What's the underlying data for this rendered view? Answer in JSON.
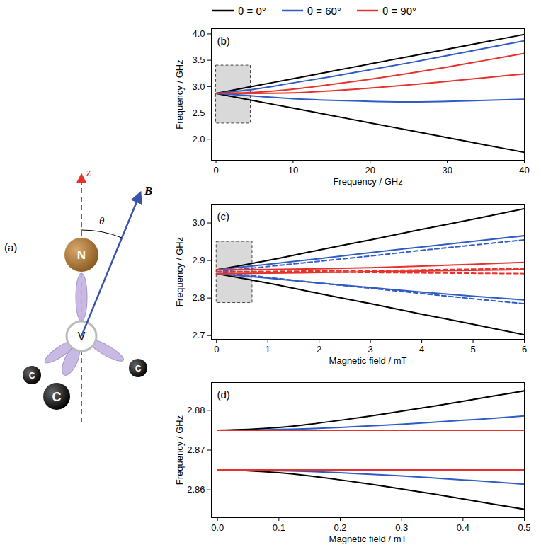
{
  "diagram": {
    "label": "(a)",
    "axis_label": "z",
    "angle_label": "θ",
    "field_label": "B",
    "atoms": {
      "nitrogen": "N",
      "vacancy": "V",
      "carbon": [
        "C",
        "C",
        "C"
      ]
    }
  },
  "chart_data": [
    {
      "type": "line",
      "title": "(b)",
      "x_label": "Frequency / GHz",
      "y_label": "Frequency / GHz",
      "x": [
        0,
        5,
        10,
        15,
        20,
        25,
        30,
        35,
        40
      ],
      "xlim": [
        -0.6,
        40
      ],
      "xticks": [
        0,
        10,
        20,
        30,
        40
      ],
      "ylim": [
        1.6,
        4.1
      ],
      "yticks": [
        {
          "value": 2,
          "label": "2.0"
        },
        2.5,
        {
          "value": 3,
          "label": "3.0"
        },
        3.5,
        {
          "value": 4,
          "label": "4.0"
        }
      ],
      "legend": "top",
      "zoom_box": {
        "x": [
          0,
          4.5
        ],
        "y": [
          2.3,
          3.4
        ]
      },
      "series": [
        {
          "name": "θ = 0°",
          "color": "#000000",
          "values": [
            2.87,
            3.01,
            3.15,
            3.29,
            3.43,
            3.57,
            3.71,
            3.85,
            3.99
          ]
        },
        {
          "name": "θ = 0°",
          "color": "#000000",
          "values": [
            2.87,
            2.73,
            2.59,
            2.45,
            2.31,
            2.17,
            2.03,
            1.89,
            1.75
          ]
        },
        {
          "name": "θ = 60°",
          "color": "#2f5cc4",
          "values": [
            2.87,
            2.95,
            3.07,
            3.19,
            3.32,
            3.45,
            3.59,
            3.73,
            3.87
          ]
        },
        {
          "name": "θ = 60°",
          "color": "#2f5cc4",
          "values": [
            2.87,
            2.82,
            2.77,
            2.74,
            2.72,
            2.71,
            2.72,
            2.74,
            2.76
          ]
        },
        {
          "name": "θ = 90°",
          "color": "#e5322d",
          "values": [
            2.87,
            2.89,
            2.95,
            3.04,
            3.14,
            3.25,
            3.37,
            3.5,
            3.63
          ]
        },
        {
          "name": "θ = 90°",
          "color": "#e5322d",
          "values": [
            2.87,
            2.87,
            2.88,
            2.92,
            2.97,
            3.03,
            3.1,
            3.17,
            3.24
          ]
        }
      ]
    },
    {
      "type": "line",
      "title": "(c)",
      "x_label": "Magnetic field / mT",
      "y_label": "Frequency / GHz",
      "x": [
        0,
        1,
        2,
        3,
        4,
        5,
        6
      ],
      "xlim": [
        -0.1,
        6
      ],
      "xticks": [
        0,
        1,
        2,
        3,
        4,
        5,
        6
      ],
      "ylim": [
        2.69,
        3.05
      ],
      "yticks": [
        2.7,
        2.8,
        2.9,
        {
          "value": 3,
          "label": "3.0"
        }
      ],
      "zoom_box": {
        "x": [
          0,
          0.7
        ],
        "y": [
          2.787,
          2.95
        ]
      },
      "series": [
        {
          "color": "#000000",
          "values": [
            2.875,
            2.9,
            2.928,
            2.955,
            2.983,
            3.01,
            3.038
          ]
        },
        {
          "color": "#000000",
          "values": [
            2.865,
            2.84,
            2.812,
            2.785,
            2.757,
            2.73,
            2.702
          ]
        },
        {
          "color": "#2f5cc4",
          "values": [
            2.875,
            2.89,
            2.905,
            2.921,
            2.936,
            2.951,
            2.966
          ]
        },
        {
          "color": "#2f5cc4",
          "values": [
            2.865,
            2.853,
            2.84,
            2.828,
            2.816,
            2.805,
            2.795
          ]
        },
        {
          "color": "#2f5cc4",
          "line_style": "dashed",
          "values": [
            2.87,
            2.884,
            2.898,
            2.912,
            2.927,
            2.941,
            2.955
          ]
        },
        {
          "color": "#2f5cc4",
          "line_style": "dashed",
          "values": [
            2.87,
            2.855,
            2.84,
            2.826,
            2.812,
            2.798,
            2.785
          ]
        },
        {
          "color": "#e5322d",
          "values": [
            2.875,
            2.876,
            2.878,
            2.881,
            2.885,
            2.89,
            2.895
          ]
        },
        {
          "color": "#e5322d",
          "values": [
            2.865,
            2.866,
            2.868,
            2.87,
            2.872,
            2.874,
            2.876
          ]
        },
        {
          "color": "#e5322d",
          "line_style": "dashed",
          "values": [
            2.87,
            2.871,
            2.872,
            2.873,
            2.875,
            2.877,
            2.879
          ]
        },
        {
          "color": "#e5322d",
          "line_style": "dashed",
          "values": [
            2.87,
            2.869,
            2.869,
            2.868,
            2.867,
            2.866,
            2.865
          ]
        }
      ]
    },
    {
      "type": "line",
      "title": "(d)",
      "x_label": "Magnetic field / mT",
      "y_label": "Frequency / GHz",
      "x": [
        0,
        0.05,
        0.1,
        0.15,
        0.2,
        0.25,
        0.3,
        0.35,
        0.4,
        0.45,
        0.5
      ],
      "xlim": [
        -0.01,
        0.5
      ],
      "xticks": [
        {
          "value": 0,
          "label": "0.0"
        },
        0.1,
        0.2,
        0.3,
        0.4,
        0.5
      ],
      "ylim": [
        2.853,
        2.887
      ],
      "yticks": [
        2.86,
        2.87,
        2.88
      ],
      "series": [
        {
          "color": "#000000",
          "values": [
            2.875,
            2.8752,
            2.8757,
            2.8765,
            2.8775,
            2.8786,
            2.8798,
            2.881,
            2.8823,
            2.8836,
            2.8849
          ]
        },
        {
          "color": "#000000",
          "values": [
            2.865,
            2.8648,
            2.8643,
            2.8635,
            2.8625,
            2.8614,
            2.8602,
            2.859,
            2.8577,
            2.8564,
            2.8551
          ]
        },
        {
          "color": "#2f5cc4",
          "values": [
            2.875,
            2.875,
            2.8752,
            2.8754,
            2.8757,
            2.8761,
            2.8765,
            2.877,
            2.8775,
            2.878,
            2.8786
          ]
        },
        {
          "color": "#2f5cc4",
          "values": [
            2.865,
            2.865,
            2.8648,
            2.8646,
            2.8643,
            2.8639,
            2.8635,
            2.863,
            2.8625,
            2.862,
            2.8614
          ]
        },
        {
          "color": "#e5322d",
          "values": [
            2.875,
            2.875,
            2.875,
            2.875,
            2.875,
            2.875,
            2.875,
            2.875,
            2.875,
            2.875,
            2.875
          ]
        },
        {
          "color": "#e5322d",
          "values": [
            2.865,
            2.865,
            2.865,
            2.865,
            2.865,
            2.865,
            2.865,
            2.865,
            2.865,
            2.865,
            2.865
          ]
        }
      ]
    }
  ]
}
